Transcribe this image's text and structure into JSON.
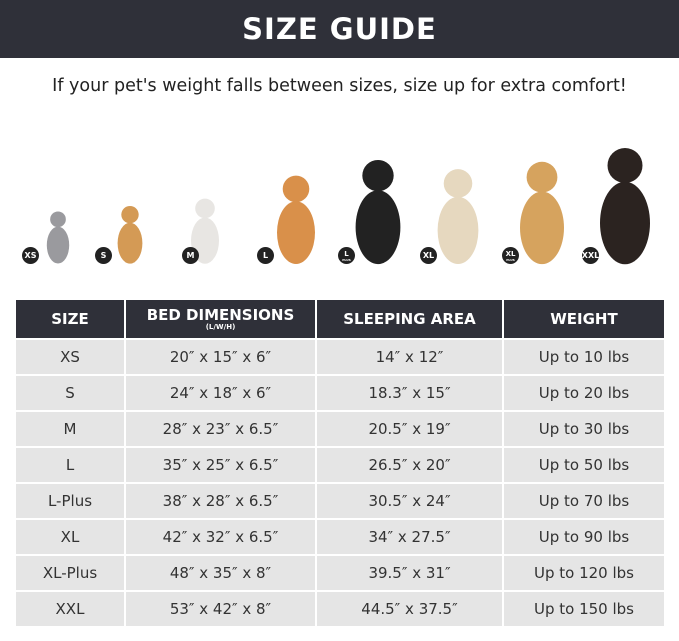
{
  "title": "SIZE GUIDE",
  "subtitle": "If your pet's weight falls between sizes, size up for extra comfort!",
  "pets": [
    {
      "badge": "XS",
      "badge_sub": "",
      "animal": "gray cat",
      "color": "#9a9a9e"
    },
    {
      "badge": "S",
      "badge_sub": "",
      "animal": "pomeranian",
      "color": "#d49a55"
    },
    {
      "badge": "M",
      "badge_sub": "",
      "animal": "french bulldog",
      "color": "#e8e6e3"
    },
    {
      "badge": "L",
      "badge_sub": "",
      "animal": "shiba inu",
      "color": "#d9904a"
    },
    {
      "badge": "L",
      "badge_sub": "PLUS",
      "animal": "border collie",
      "color": "#222222"
    },
    {
      "badge": "XL",
      "badge_sub": "",
      "animal": "labrador",
      "color": "#e6d8bf"
    },
    {
      "badge": "XL",
      "badge_sub": "PLUS",
      "animal": "golden retriever",
      "color": "#d6a35e"
    },
    {
      "badge": "XXL",
      "badge_sub": "",
      "animal": "doberman",
      "color": "#2b2320"
    }
  ],
  "table": {
    "headers": [
      "SIZE",
      "BED DIMENSIONS",
      "SLEEPING AREA",
      "WEIGHT"
    ],
    "bed_unit": "(L/W/H)",
    "rows": [
      [
        "XS",
        "20″ x 15″ x 6″",
        "14″ x 12″",
        "Up to 10 lbs"
      ],
      [
        "S",
        "24″ x 18″ x 6″",
        "18.3″ x 15″",
        "Up to 20 lbs"
      ],
      [
        "M",
        "28″ x 23″ x 6.5″",
        "20.5″ x 19″",
        "Up to 30 lbs"
      ],
      [
        "L",
        "35″ x 25″ x 6.5″",
        "26.5″ x 20″",
        "Up to 50 lbs"
      ],
      [
        "L-Plus",
        "38″ x 28″ x 6.5″",
        "30.5″ x 24″",
        "Up to 70 lbs"
      ],
      [
        "XL",
        "42″ x 32″ x 6.5″",
        "34″ x 27.5″",
        "Up to 90 lbs"
      ],
      [
        "XL-Plus",
        "48″ x 35″ x 8″",
        "39.5″ x 31″",
        "Up to 120 lbs"
      ],
      [
        "XXL",
        "53″ x 42″ x 8″",
        "44.5″ x 37.5″",
        "Up to 150 lbs"
      ]
    ]
  }
}
